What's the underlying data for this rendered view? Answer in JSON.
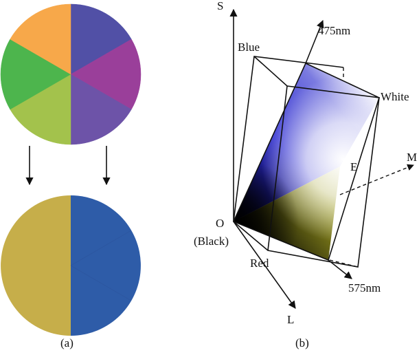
{
  "panel_a": {
    "caption": "(a)",
    "top_wheel": {
      "slices": [
        {
          "name": "blue",
          "color": "#5150A6"
        },
        {
          "name": "magenta",
          "color": "#9A3F9A"
        },
        {
          "name": "violet",
          "color": "#6D53A8"
        },
        {
          "name": "yellow-green",
          "color": "#A3C24C"
        },
        {
          "name": "green",
          "color": "#4DB54D"
        },
        {
          "name": "orange",
          "color": "#F7A84A"
        }
      ]
    },
    "bottom_wheel": {
      "left_color": "#C6AE4A",
      "right_color": "#2E5CA8",
      "right_seam_color": "#2D57A1"
    }
  },
  "panel_b": {
    "caption": "(b)",
    "labels": {
      "s_axis": "S",
      "m_axis": "M",
      "l_axis": "L",
      "wavelength_blue": "475nm",
      "wavelength_yellow": "575nm",
      "blue": "Blue",
      "white": "White",
      "red": "Red",
      "origin": "O",
      "black": "(Black)",
      "equal_energy": "E"
    },
    "colors": {
      "blue": "#2B2AD0",
      "yellow": "#B8B52A",
      "black": "#000000",
      "white": "#ffffff"
    }
  }
}
